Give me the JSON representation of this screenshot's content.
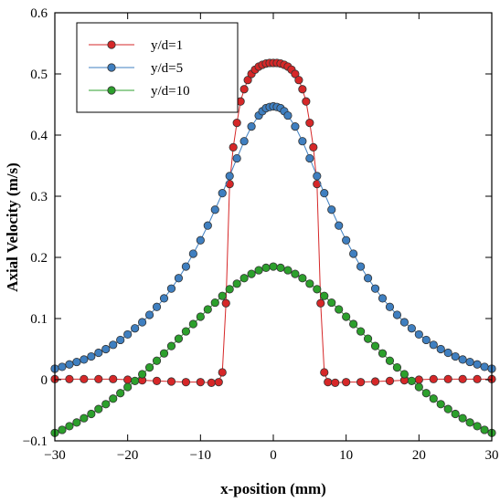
{
  "chart_data": {
    "type": "line",
    "title": "",
    "xlabel": "x-position (mm)",
    "ylabel": "Axial Velocity (m/s)",
    "xlim": [
      -30,
      30
    ],
    "ylim": [
      -0.1,
      0.6
    ],
    "xticks": [
      "−30",
      "−20",
      "−10",
      "0",
      "10",
      "20",
      "30"
    ],
    "yticks": [
      "−0.1",
      "0",
      "0.1",
      "0.2",
      "0.3",
      "0.4",
      "0.5",
      "0.6"
    ],
    "grid": false,
    "legend_position": "top-left",
    "marker": "circle",
    "series": [
      {
        "name": "y/d=1",
        "color": "#d62728",
        "x": [
          -30,
          -28,
          -26,
          -24,
          -22,
          -20,
          -18,
          -16,
          -14,
          -12,
          -10,
          -8.5,
          -7.5,
          -7,
          -6.5,
          -6,
          -5.5,
          -5,
          -4.5,
          -4,
          -3.5,
          -3,
          -2.5,
          -2,
          -1.5,
          -1,
          -0.5,
          0,
          0.5,
          1,
          1.5,
          2,
          2.5,
          3,
          3.5,
          4,
          4.5,
          5,
          5.5,
          6,
          6.5,
          7,
          7.5,
          8.5,
          10,
          12,
          14,
          16,
          18,
          20,
          22,
          24,
          26,
          28,
          30
        ],
        "y": [
          0.001,
          0.001,
          0.001,
          0.001,
          0.001,
          0.0,
          -0.001,
          -0.002,
          -0.003,
          -0.004,
          -0.004,
          -0.005,
          -0.004,
          0.012,
          0.125,
          0.32,
          0.38,
          0.42,
          0.455,
          0.475,
          0.49,
          0.5,
          0.507,
          0.512,
          0.515,
          0.517,
          0.518,
          0.518,
          0.518,
          0.517,
          0.515,
          0.512,
          0.507,
          0.5,
          0.49,
          0.475,
          0.455,
          0.42,
          0.38,
          0.32,
          0.125,
          0.012,
          -0.004,
          -0.005,
          -0.004,
          -0.004,
          -0.003,
          -0.002,
          -0.001,
          0.0,
          0.001,
          0.001,
          0.001,
          0.001,
          0.001
        ]
      },
      {
        "name": "y/d=5",
        "color": "#3f7fc0",
        "x": [
          -30,
          -29,
          -28,
          -27,
          -26,
          -25,
          -24,
          -23,
          -22,
          -21,
          -20,
          -19,
          -18,
          -17,
          -16,
          -15,
          -14,
          -13,
          -12,
          -11,
          -10,
          -9,
          -8,
          -7,
          -6,
          -5,
          -4,
          -3,
          -2,
          -1.5,
          -1,
          -0.5,
          0,
          0.5,
          1,
          1.5,
          2,
          3,
          4,
          5,
          6,
          7,
          8,
          9,
          10,
          11,
          12,
          13,
          14,
          15,
          16,
          17,
          18,
          19,
          20,
          21,
          22,
          23,
          24,
          25,
          26,
          27,
          28,
          29,
          30
        ],
        "y": [
          0.018,
          0.021,
          0.025,
          0.029,
          0.033,
          0.038,
          0.044,
          0.05,
          0.057,
          0.065,
          0.074,
          0.084,
          0.094,
          0.106,
          0.119,
          0.133,
          0.149,
          0.166,
          0.185,
          0.206,
          0.228,
          0.252,
          0.278,
          0.305,
          0.333,
          0.362,
          0.39,
          0.414,
          0.432,
          0.439,
          0.444,
          0.446,
          0.447,
          0.446,
          0.444,
          0.439,
          0.432,
          0.414,
          0.39,
          0.362,
          0.333,
          0.305,
          0.278,
          0.252,
          0.228,
          0.206,
          0.185,
          0.166,
          0.149,
          0.133,
          0.119,
          0.106,
          0.094,
          0.084,
          0.074,
          0.065,
          0.057,
          0.05,
          0.044,
          0.038,
          0.033,
          0.029,
          0.025,
          0.021,
          0.018
        ]
      },
      {
        "name": "y/d=10",
        "color": "#2ca02c",
        "x": [
          -30,
          -29,
          -28,
          -27,
          -26,
          -25,
          -24,
          -23,
          -22,
          -21,
          -20,
          -19,
          -18,
          -17,
          -16,
          -15,
          -14,
          -13,
          -12,
          -11,
          -10,
          -9,
          -8,
          -7,
          -6,
          -5,
          -4,
          -3,
          -2,
          -1,
          0,
          1,
          2,
          3,
          4,
          5,
          6,
          7,
          8,
          9,
          10,
          11,
          12,
          13,
          14,
          15,
          16,
          17,
          18,
          19,
          20,
          21,
          22,
          23,
          24,
          25,
          26,
          27,
          28,
          29,
          30
        ],
        "y": [
          -0.087,
          -0.082,
          -0.076,
          -0.07,
          -0.063,
          -0.056,
          -0.048,
          -0.04,
          -0.031,
          -0.022,
          -0.012,
          -0.002,
          0.009,
          0.02,
          0.031,
          0.043,
          0.055,
          0.067,
          0.079,
          0.091,
          0.103,
          0.115,
          0.126,
          0.137,
          0.148,
          0.157,
          0.166,
          0.173,
          0.179,
          0.183,
          0.185,
          0.183,
          0.179,
          0.173,
          0.166,
          0.157,
          0.148,
          0.137,
          0.126,
          0.115,
          0.103,
          0.091,
          0.079,
          0.067,
          0.055,
          0.043,
          0.031,
          0.02,
          0.009,
          -0.002,
          -0.012,
          -0.022,
          -0.031,
          -0.04,
          -0.048,
          -0.056,
          -0.063,
          -0.07,
          -0.076,
          -0.082,
          -0.087
        ]
      }
    ]
  }
}
